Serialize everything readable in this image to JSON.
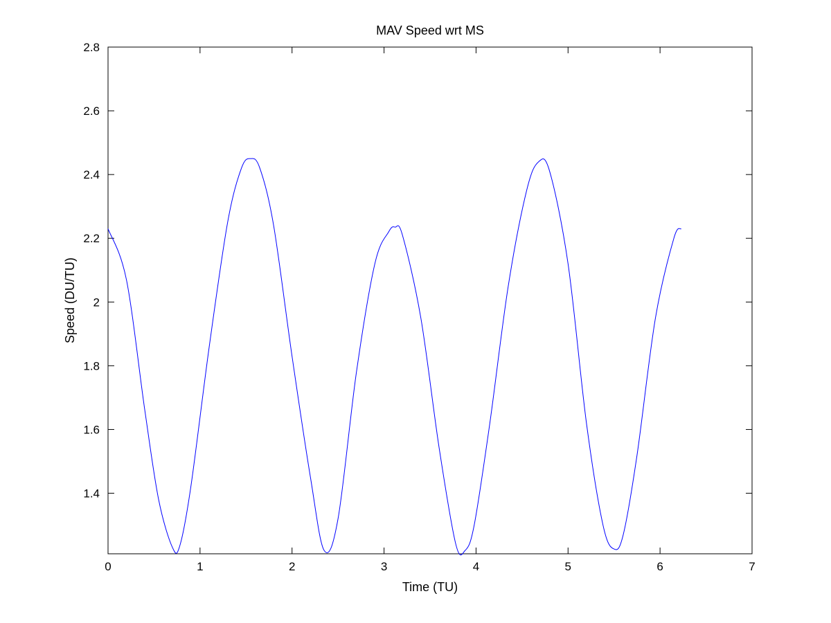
{
  "chart_data": {
    "type": "line",
    "title": "MAV Speed wrt MS",
    "xlabel": "Time (TU)",
    "ylabel": "Speed (DU/TU)",
    "xlim": [
      0,
      7
    ],
    "ylim": [
      1.21,
      2.8
    ],
    "xticks": [
      0,
      1,
      2,
      3,
      4,
      5,
      6,
      7
    ],
    "xtick_labels": [
      "0",
      "1",
      "2",
      "3",
      "4",
      "5",
      "6",
      "7"
    ],
    "yticks": [
      1.4,
      1.6,
      1.8,
      2.0,
      2.2,
      2.4,
      2.6,
      2.8
    ],
    "ytick_labels": [
      "1.4",
      "1.6",
      "1.8",
      "2",
      "2.2",
      "2.4",
      "2.6",
      "2.8"
    ],
    "grid": false,
    "line_color": "#0000ff",
    "series": [
      {
        "x": [
          0.0,
          0.2,
          0.4,
          0.55,
          0.7,
          0.78,
          0.9,
          1.1,
          1.3,
          1.45,
          1.55,
          1.65,
          1.8,
          2.0,
          2.2,
          2.35,
          2.5,
          2.7,
          2.9,
          3.05,
          3.12,
          3.2,
          3.4,
          3.6,
          3.78,
          3.88,
          3.98,
          4.15,
          4.35,
          4.55,
          4.68,
          4.8,
          5.0,
          5.2,
          5.38,
          5.5,
          5.6,
          5.75,
          5.95,
          6.15,
          6.23
        ],
        "y": [
          2.23,
          2.07,
          1.66,
          1.38,
          1.23,
          1.235,
          1.42,
          1.86,
          2.25,
          2.42,
          2.45,
          2.42,
          2.24,
          1.83,
          1.45,
          1.22,
          1.32,
          1.78,
          2.12,
          2.22,
          2.235,
          2.21,
          1.95,
          1.54,
          1.24,
          1.22,
          1.3,
          1.62,
          2.05,
          2.35,
          2.44,
          2.41,
          2.12,
          1.62,
          1.3,
          1.225,
          1.27,
          1.52,
          1.95,
          2.2,
          2.23
        ]
      }
    ]
  }
}
